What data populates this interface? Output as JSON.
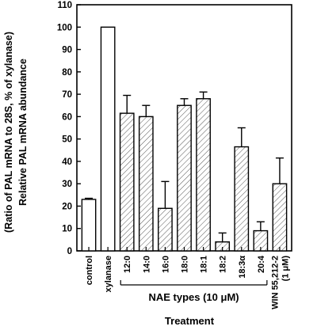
{
  "chart_data": {
    "type": "bar",
    "ylabel_line1": "(Ratio of PAL mRNA to 28S, % of xylanase)",
    "ylabel_line2": "Relative PAL mRNA abundance",
    "xlabel": "Treatment",
    "group_label": "NAE types (10 μM)",
    "ylim": [
      0,
      110
    ],
    "yticks": [
      0,
      10,
      20,
      30,
      40,
      50,
      60,
      70,
      80,
      90,
      100,
      110
    ],
    "categories": [
      "control",
      "xylanase",
      "12:0",
      "14:0",
      "16:0",
      "18:0",
      "18:1",
      "18:2",
      "18:3α",
      "20:4",
      "WIN 55,212-2 (1 μM)"
    ],
    "category_lines": [
      [
        "control"
      ],
      [
        "xylanase"
      ],
      [
        "12:0"
      ],
      [
        "14:0"
      ],
      [
        "16:0"
      ],
      [
        "18:0"
      ],
      [
        "18:1"
      ],
      [
        "18:2"
      ],
      [
        "18:3α"
      ],
      [
        "20:4"
      ],
      [
        "WIN 55,212-2",
        "(1 μM)"
      ]
    ],
    "values": [
      23,
      100,
      61.5,
      60,
      19,
      65,
      68,
      4,
      46.5,
      9,
      30
    ],
    "errors": [
      0.5,
      0,
      8,
      5,
      12,
      3,
      3,
      4,
      8.5,
      4,
      11.5
    ],
    "hatched": [
      false,
      false,
      true,
      true,
      true,
      true,
      true,
      true,
      true,
      true,
      true
    ],
    "grouped_categories": [
      "12:0",
      "20:4"
    ],
    "legend": "none",
    "grid": false
  }
}
